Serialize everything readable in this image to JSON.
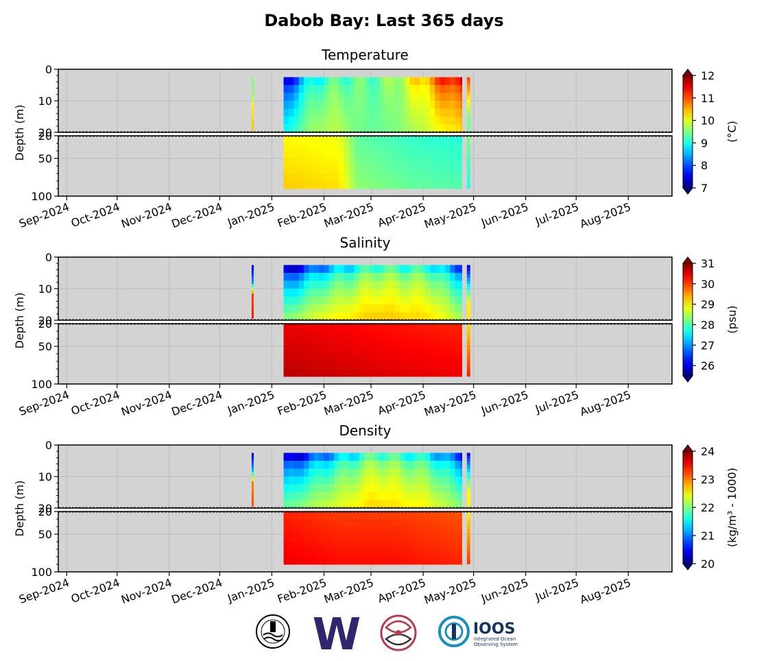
{
  "page": {
    "title": "Dabob Bay: Last 365 days",
    "logos": [
      {
        "name": "noaa-seal-logo"
      },
      {
        "name": "uw-w-logo",
        "text": "W"
      },
      {
        "name": "nanoos-logo"
      },
      {
        "name": "ioos-logo",
        "text": "IOOS",
        "subtext": "Integrated Ocean Observing System"
      }
    ]
  },
  "chart_data": [
    {
      "type": "heatmap",
      "title": "Temperature",
      "ylabel": "Depth (m)",
      "colorbar_label": "(°C)",
      "clim": [
        7,
        12
      ],
      "colorbar_ticks": [
        7,
        8,
        9,
        10,
        11,
        12
      ],
      "colormap": "jet",
      "colorbar_extend": "both",
      "x_range": [
        "2024-08-27",
        "2025-08-27"
      ],
      "x_ticks": [
        "Sep-2024",
        "Oct-2024",
        "Nov-2024",
        "Dec-2024",
        "Jan-2025",
        "Feb-2025",
        "Mar-2025",
        "Apr-2025",
        "May-2025",
        "Jun-2025",
        "Jul-2025",
        "Aug-2025"
      ],
      "upper_axis": {
        "ylim": [
          0,
          20
        ],
        "ticks": [
          0,
          10,
          20
        ]
      },
      "lower_axis": {
        "ylim": [
          20,
          100
        ],
        "ticks": [
          20,
          50,
          100
        ]
      },
      "grid": true,
      "profiles": [
        {
          "start": "2024-12-20",
          "end": "2024-12-21",
          "depth_max": 20,
          "values_by_depth": [
            [
              3,
              9.5
            ],
            [
              8,
              9.6
            ],
            [
              12,
              10.2
            ],
            [
              18,
              10.4
            ]
          ]
        },
        {
          "start": "2025-01-08",
          "end": "2025-04-24",
          "depth_max": 90,
          "surface": [
            [
              0,
              7.5
            ],
            [
              0.1,
              8.5
            ],
            [
              0.15,
              9.0
            ],
            [
              0.3,
              9.3
            ],
            [
              0.55,
              9.4
            ],
            [
              0.75,
              10.3
            ],
            [
              0.9,
              11.2
            ],
            [
              1.0,
              11.5
            ]
          ],
          "bottom": [
            [
              0,
              10.3
            ],
            [
              0.3,
              10.2
            ],
            [
              0.4,
              9.5
            ],
            [
              0.7,
              9.3
            ],
            [
              1.0,
              9.2
            ]
          ]
        },
        {
          "start": "2025-04-27",
          "end": "2025-04-29",
          "depth_max": 90,
          "values_by_depth": [
            [
              3,
              11.0
            ],
            [
              15,
              9.5
            ],
            [
              90,
              9.0
            ]
          ]
        }
      ]
    },
    {
      "type": "heatmap",
      "title": "Salinity",
      "ylabel": "Depth (m)",
      "colorbar_label": "(psu)",
      "clim": [
        25.5,
        31
      ],
      "colorbar_ticks": [
        26,
        27,
        28,
        29,
        30,
        31
      ],
      "colormap": "jet",
      "colorbar_extend": "both",
      "x_range": [
        "2024-08-27",
        "2025-08-27"
      ],
      "x_ticks": [
        "Sep-2024",
        "Oct-2024",
        "Nov-2024",
        "Dec-2024",
        "Jan-2025",
        "Feb-2025",
        "Mar-2025",
        "Apr-2025",
        "May-2025",
        "Jun-2025",
        "Jul-2025",
        "Aug-2025"
      ],
      "upper_axis": {
        "ylim": [
          0,
          20
        ],
        "ticks": [
          0,
          10,
          20
        ]
      },
      "lower_axis": {
        "ylim": [
          20,
          100
        ],
        "ticks": [
          20,
          50,
          100
        ]
      },
      "grid": true,
      "profiles": [
        {
          "start": "2024-12-20",
          "end": "2024-12-21",
          "depth_max": 20,
          "values_by_depth": [
            [
              3,
              26.0
            ],
            [
              8,
              27.0
            ],
            [
              12,
              30.0
            ],
            [
              18,
              30.2
            ]
          ]
        },
        {
          "start": "2025-01-08",
          "end": "2025-04-24",
          "depth_max": 90,
          "surface": [
            [
              0,
              25.8
            ],
            [
              0.2,
              27.0
            ],
            [
              0.5,
              28.0
            ],
            [
              0.8,
              27.8
            ],
            [
              1.0,
              26.5
            ]
          ],
          "bottom": [
            [
              0,
              30.6
            ],
            [
              0.3,
              30.5
            ],
            [
              0.6,
              30.4
            ],
            [
              1.0,
              30.3
            ]
          ]
        },
        {
          "start": "2025-04-27",
          "end": "2025-04-29",
          "depth_max": 90,
          "values_by_depth": [
            [
              3,
              26.0
            ],
            [
              15,
              29.0
            ],
            [
              90,
              30.2
            ]
          ]
        }
      ]
    },
    {
      "type": "heatmap",
      "title": "Density",
      "ylabel": "Depth (m)",
      "colorbar_label": "(kg/m³ - 1000)",
      "clim": [
        20,
        24
      ],
      "colorbar_ticks": [
        20,
        21,
        22,
        23,
        24
      ],
      "colormap": "jet",
      "colorbar_extend": "both",
      "x_range": [
        "2024-08-27",
        "2025-08-27"
      ],
      "x_ticks": [
        "Sep-2024",
        "Oct-2024",
        "Nov-2024",
        "Dec-2024",
        "Jan-2025",
        "Feb-2025",
        "Mar-2025",
        "Apr-2025",
        "May-2025",
        "Jun-2025",
        "Jul-2025",
        "Aug-2025"
      ],
      "upper_axis": {
        "ylim": [
          0,
          20
        ],
        "ticks": [
          0,
          10,
          20
        ]
      },
      "lower_axis": {
        "ylim": [
          20,
          100
        ],
        "ticks": [
          20,
          50,
          100
        ]
      },
      "grid": true,
      "profiles": [
        {
          "start": "2024-12-20",
          "end": "2024-12-21",
          "depth_max": 20,
          "values_by_depth": [
            [
              3,
              20.3
            ],
            [
              8,
              21.2
            ],
            [
              12,
              23.0
            ],
            [
              18,
              23.2
            ]
          ]
        },
        {
          "start": "2025-01-08",
          "end": "2025-04-24",
          "depth_max": 90,
          "surface": [
            [
              0,
              20.2
            ],
            [
              0.2,
              21.0
            ],
            [
              0.5,
              21.9
            ],
            [
              0.8,
              21.5
            ],
            [
              1.0,
              20.6
            ]
          ],
          "bottom": [
            [
              0,
              23.5
            ],
            [
              0.3,
              23.4
            ],
            [
              0.6,
              23.4
            ],
            [
              1.0,
              23.3
            ]
          ]
        },
        {
          "start": "2025-04-27",
          "end": "2025-04-29",
          "depth_max": 90,
          "values_by_depth": [
            [
              3,
              20.5
            ],
            [
              15,
              22.5
            ],
            [
              90,
              23.3
            ]
          ]
        }
      ]
    }
  ]
}
